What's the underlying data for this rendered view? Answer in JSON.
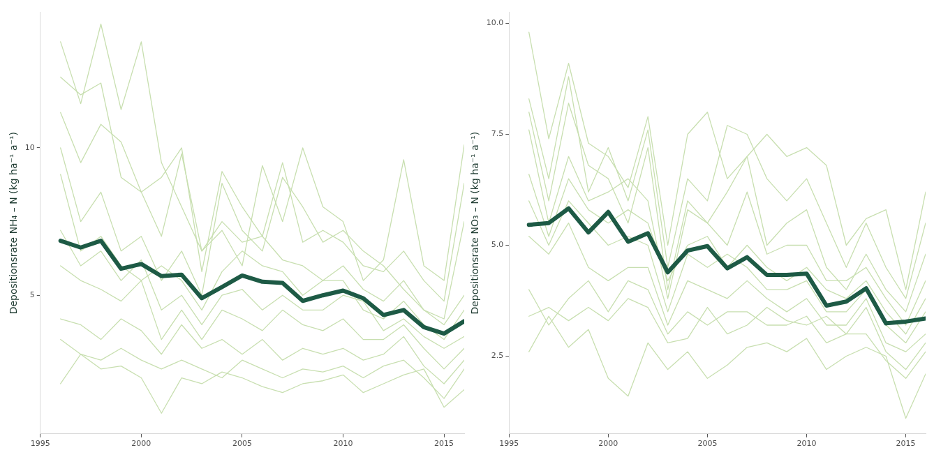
{
  "chart_data": [
    {
      "type": "line",
      "ylabel": "Depositionsrate NH₄ – N (kg ha⁻¹ a⁻¹)",
      "x": [
        1996,
        1997,
        1998,
        1999,
        2000,
        2001,
        2002,
        2003,
        2004,
        2005,
        2006,
        2007,
        2008,
        2009,
        2010,
        2011,
        2012,
        2013,
        2014,
        2015,
        2016
      ],
      "xlim": [
        1995,
        2016
      ],
      "xticks": [
        1995,
        2000,
        2005,
        2010,
        2015
      ],
      "ylim": [
        0.3,
        14.6
      ],
      "yticks": [
        5,
        10
      ],
      "grid": false,
      "legend": false,
      "marker": "none",
      "line_style": "solid",
      "series": [
        {
          "color": "#c8dfb0",
          "values": [
            13.6,
            11.5,
            14.2,
            11.3,
            13.6,
            9.5,
            8.0,
            6.5,
            7.5,
            6.8,
            7.0,
            6.2,
            6.0,
            5.5,
            6.0,
            5.2,
            4.8,
            5.5,
            4.5,
            4.0,
            5.0
          ]
        },
        {
          "color": "#c8dfb0",
          "values": [
            12.4,
            11.8,
            12.2,
            9.0,
            8.5,
            9.0,
            10.0,
            5.8,
            9.2,
            8.0,
            7.0,
            9.5,
            6.8,
            7.2,
            6.8,
            6.0,
            5.8,
            6.5,
            5.5,
            4.8,
            8.8
          ]
        },
        {
          "color": "#c8dfb0",
          "values": [
            11.2,
            9.5,
            10.8,
            10.2,
            8.5,
            7.0,
            9.8,
            6.5,
            7.2,
            6.0,
            9.4,
            7.5,
            10.0,
            8.0,
            7.5,
            5.5,
            6.2,
            9.6,
            6.0,
            5.5,
            10.1
          ]
        },
        {
          "color": "#c8dfb0",
          "values": [
            10.0,
            7.5,
            8.5,
            6.5,
            7.0,
            5.5,
            6.5,
            5.0,
            8.8,
            7.2,
            6.5,
            9.0,
            8.0,
            6.8,
            7.2,
            6.5,
            6.0,
            5.2,
            4.5,
            4.2,
            7.5
          ]
        },
        {
          "color": "#c8dfb0",
          "values": [
            9.1,
            6.5,
            7.0,
            6.0,
            5.5,
            6.0,
            5.5,
            4.5,
            5.8,
            6.5,
            6.0,
            5.8,
            5.0,
            5.5,
            5.5,
            4.5,
            4.2,
            4.8,
            4.0,
            3.5,
            4.5
          ]
        },
        {
          "color": "#c8dfb0",
          "values": [
            7.2,
            6.0,
            6.5,
            5.5,
            6.2,
            4.5,
            5.0,
            4.0,
            5.0,
            5.2,
            4.5,
            5.0,
            4.5,
            4.5,
            5.0,
            4.8,
            3.8,
            4.2,
            3.6,
            3.2,
            3.6
          ]
        },
        {
          "color": "#c8dfb0",
          "values": [
            6.0,
            5.5,
            5.2,
            4.8,
            5.5,
            3.5,
            4.5,
            3.5,
            4.5,
            4.2,
            3.8,
            4.5,
            4.0,
            3.8,
            4.2,
            3.5,
            3.5,
            4.0,
            3.2,
            2.5,
            3.2
          ]
        },
        {
          "color": "#c8dfb0",
          "values": [
            4.2,
            4.0,
            3.5,
            4.2,
            3.8,
            3.0,
            4.0,
            3.2,
            3.5,
            3.0,
            3.5,
            2.8,
            3.2,
            3.0,
            3.2,
            2.8,
            3.0,
            3.6,
            2.6,
            2.0,
            2.8
          ]
        },
        {
          "color": "#c8dfb0",
          "values": [
            3.5,
            3.0,
            2.8,
            3.2,
            2.8,
            2.5,
            2.8,
            2.5,
            2.2,
            2.8,
            2.5,
            2.2,
            2.5,
            2.4,
            2.6,
            2.2,
            2.6,
            2.8,
            2.2,
            1.5,
            2.5
          ]
        },
        {
          "color": "#c8dfb0",
          "values": [
            2.0,
            3.0,
            2.5,
            2.6,
            2.2,
            1.0,
            2.2,
            2.0,
            2.4,
            2.2,
            1.9,
            1.7,
            2.0,
            2.1,
            2.3,
            1.7,
            2.0,
            2.3,
            2.5,
            1.2,
            1.8
          ]
        },
        {
          "color": "#1d5a45",
          "values": [
            6.85,
            6.62,
            6.85,
            5.9,
            6.06,
            5.65,
            5.7,
            4.9,
            5.28,
            5.67,
            5.46,
            5.42,
            4.81,
            5.0,
            5.16,
            4.9,
            4.33,
            4.5,
            3.92,
            3.7,
            4.12
          ]
        }
      ]
    },
    {
      "type": "line",
      "ylabel": "Depositionsrate NO₃ – N (kg ha⁻¹ a⁻¹)",
      "x": [
        1996,
        1997,
        1998,
        1999,
        2000,
        2001,
        2002,
        2003,
        2004,
        2005,
        2006,
        2007,
        2008,
        2009,
        2010,
        2011,
        2012,
        2013,
        2014,
        2015,
        2016
      ],
      "xlim": [
        1995,
        2016
      ],
      "xticks": [
        1995,
        2000,
        2005,
        2010,
        2015
      ],
      "ylim": [
        0.75,
        10.25
      ],
      "yticks": [
        {
          "value": 2.5,
          "label": "2.5"
        },
        {
          "value": 5,
          "label": "5.0"
        },
        {
          "value": 7.5,
          "label": "7.5"
        },
        {
          "value": 10,
          "label": "10.0"
        }
      ],
      "grid": false,
      "legend": false,
      "marker": "none",
      "line_style": "solid",
      "series": [
        {
          "color": "#c8dfb0",
          "values": [
            9.8,
            7.4,
            9.1,
            7.3,
            7.0,
            6.3,
            7.9,
            5.0,
            7.5,
            8.0,
            6.5,
            7.0,
            7.5,
            7.0,
            7.2,
            6.8,
            5.0,
            5.6,
            5.8,
            4.0,
            6.2
          ]
        },
        {
          "color": "#c8dfb0",
          "values": [
            8.3,
            6.5,
            8.8,
            6.2,
            7.2,
            6.0,
            7.6,
            4.5,
            6.5,
            6.0,
            7.7,
            7.5,
            6.5,
            6.0,
            6.5,
            5.5,
            4.5,
            5.5,
            4.5,
            3.8,
            5.5
          ]
        },
        {
          "color": "#c8dfb0",
          "values": [
            8.0,
            6.0,
            8.2,
            6.8,
            6.5,
            5.5,
            7.2,
            4.0,
            6.0,
            5.5,
            6.2,
            7.0,
            5.0,
            5.5,
            5.8,
            4.5,
            4.0,
            4.8,
            4.0,
            3.5,
            4.8
          ]
        },
        {
          "color": "#c8dfb0",
          "values": [
            7.6,
            5.5,
            7.0,
            6.0,
            6.2,
            6.5,
            6.0,
            3.8,
            5.8,
            5.5,
            5.0,
            6.2,
            4.8,
            5.0,
            5.0,
            4.2,
            4.2,
            4.5,
            3.8,
            3.2,
            4.2
          ]
        },
        {
          "color": "#c8dfb0",
          "values": [
            6.6,
            5.2,
            6.5,
            5.8,
            5.5,
            5.8,
            5.5,
            4.2,
            5.0,
            5.2,
            4.5,
            5.0,
            4.5,
            4.2,
            4.5,
            4.0,
            3.8,
            4.2,
            3.5,
            3.0,
            3.8
          ]
        },
        {
          "color": "#c8dfb0",
          "values": [
            6.0,
            5.0,
            6.0,
            5.5,
            5.0,
            5.2,
            5.0,
            3.5,
            4.8,
            4.5,
            4.8,
            4.5,
            4.0,
            4.0,
            4.2,
            3.5,
            3.5,
            4.0,
            3.2,
            2.8,
            3.5
          ]
        },
        {
          "color": "#c8dfb0",
          "values": [
            5.2,
            4.8,
            5.5,
            4.5,
            4.2,
            4.5,
            4.5,
            3.2,
            4.2,
            4.0,
            3.8,
            4.2,
            3.8,
            3.5,
            3.8,
            3.2,
            3.2,
            3.8,
            2.8,
            2.6,
            3.0
          ]
        },
        {
          "color": "#c8dfb0",
          "values": [
            4.0,
            3.2,
            3.8,
            4.2,
            3.5,
            4.2,
            4.0,
            3.0,
            3.5,
            3.2,
            3.5,
            3.5,
            3.2,
            3.2,
            3.4,
            2.8,
            3.0,
            3.6,
            2.6,
            2.2,
            2.8
          ]
        },
        {
          "color": "#c8dfb0",
          "values": [
            3.4,
            3.6,
            3.3,
            3.6,
            3.3,
            3.8,
            3.6,
            2.8,
            2.9,
            3.6,
            3.0,
            3.2,
            3.6,
            3.3,
            3.2,
            3.4,
            3.0,
            3.0,
            2.4,
            2.0,
            2.6
          ]
        },
        {
          "color": "#c8dfb0",
          "values": [
            2.6,
            3.4,
            2.7,
            3.1,
            2.0,
            1.6,
            2.8,
            2.2,
            2.6,
            2.0,
            2.3,
            2.7,
            2.8,
            2.6,
            2.9,
            2.2,
            2.5,
            2.7,
            2.5,
            1.1,
            2.1
          ]
        },
        {
          "color": "#1d5a45",
          "values": [
            5.46,
            5.5,
            5.83,
            5.29,
            5.75,
            5.08,
            5.27,
            4.39,
            4.88,
            4.98,
            4.48,
            4.73,
            4.33,
            4.33,
            4.36,
            3.64,
            3.73,
            4.03,
            3.24,
            3.28,
            3.35
          ]
        }
      ]
    }
  ]
}
